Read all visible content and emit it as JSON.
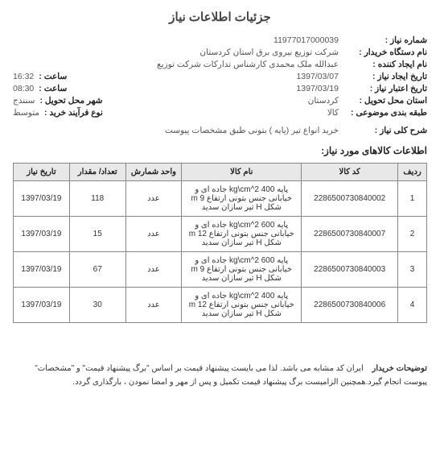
{
  "page_title": "جزئیات اطلاعات نیاز",
  "info": {
    "need_number_label": "شماره نیاز :",
    "need_number": "11977017000039",
    "buyer_org_label": "نام دستگاه خریدار :",
    "buyer_org": "شرکت توزیع نیروی برق استان کردستان",
    "creator_label": "نام ایجاد کننده :",
    "creator": "عبدالله ملک محمدی کارشناس تدارکات شرکت توزیع",
    "create_date_label": "تاریخ ایجاد نیاز :",
    "create_date": "1397/03/07",
    "create_time_label": "ساعت :",
    "create_time": "16:32",
    "valid_date_label": "تاریخ اعتبار نیاز :",
    "valid_date": "1397/03/19",
    "valid_time_label": "ساعت :",
    "valid_time": "08:30",
    "delivery_province_label": "استان محل تحویل :",
    "delivery_province": "کردستان",
    "delivery_city_label": "شهر محل تحویل :",
    "delivery_city": "سنندج",
    "subject_class_label": "طبقه بندی موضوعی :",
    "subject_class": "کالا",
    "purchase_type_label": "نوع فرآیند خرید :",
    "purchase_type": "متوسط",
    "summary_label": "شرح کلی نیاز :",
    "summary": "خرید انواع تیر (پایه ) بتونی طبق مشخصات پیوست"
  },
  "items_header": "اطلاعات کالاهای مورد نیاز:",
  "table": {
    "headers": {
      "idx": "ردیف",
      "code": "کد کالا",
      "name": "نام کالا",
      "unit": "واحد شمارش",
      "qty": "تعداد/ مقدار",
      "date": "تاریخ نیاز"
    },
    "rows": [
      {
        "idx": "1",
        "code": "2286500730840002",
        "name": "پایه 400 kg\\cm^2 جاده ای و خیابانی جنس بتونی ارتفاع 9 m شکل H تیر سازان سدید",
        "unit": "عدد",
        "qty": "118",
        "date": "1397/03/19"
      },
      {
        "idx": "2",
        "code": "2286500730840007",
        "name": "پایه 600 kg\\cm^2 جاده ای و خیابانی جنس بتونی ارتفاع 12 m شکل H تیر سازان سدید",
        "unit": "عدد",
        "qty": "15",
        "date": "1397/03/19"
      },
      {
        "idx": "3",
        "code": "2286500730840003",
        "name": "پایه 600 kg\\cm^2 جاده ای و خیابانی جنس بتونی ارتفاع 9 m شکل H تیر سازان سدید",
        "unit": "عدد",
        "qty": "67",
        "date": "1397/03/19"
      },
      {
        "idx": "4",
        "code": "2286500730840006",
        "name": "پایه 400 kg\\cm^2 جاده ای و خیابانی جنس بتونی ارتفاع 12 m شکل H تیر سازان سدید",
        "unit": "عدد",
        "qty": "30",
        "date": "1397/03/19"
      }
    ]
  },
  "footer": {
    "label": "توضیحات خریدار",
    "text": "ایران کد مشابه می باشد. لذا می بایست پیشنهاد قیمت بر اساس \"برگ پیشنهاد قیمت\" و \"مشخصات\" پیوست انجام گیرد.همچنین الزامیست برگ پیشنهاد قیمت تکمیل و پس از مهر و امضا نمودن ، بارگذاری گردد."
  },
  "colors": {
    "header_bg": "#e8e8e8",
    "border": "#888888",
    "text": "#333333"
  }
}
